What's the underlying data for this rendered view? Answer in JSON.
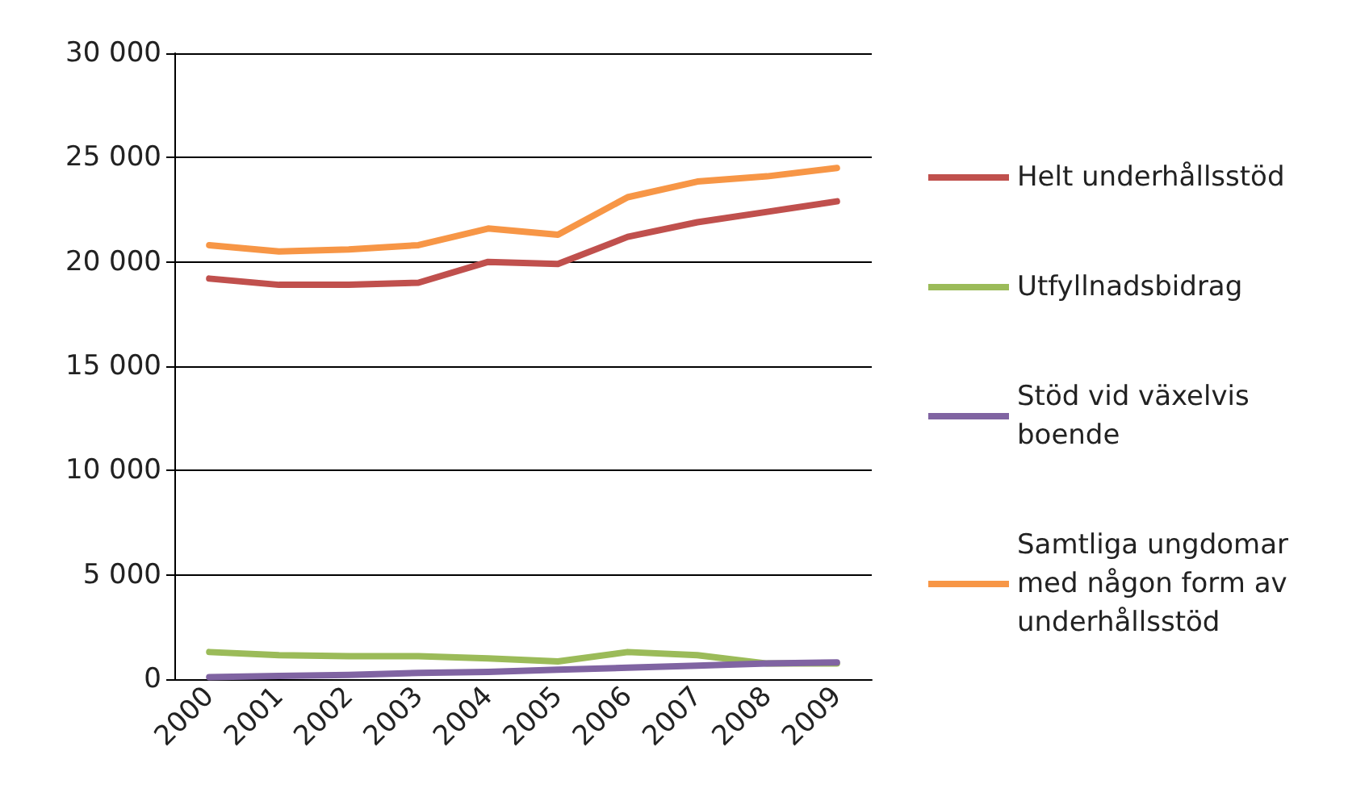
{
  "chart_data": {
    "type": "line",
    "categories": [
      "2000",
      "2001",
      "2002",
      "2003",
      "2004",
      "2005",
      "2006",
      "2007",
      "2008",
      "2009"
    ],
    "series": [
      {
        "name": "Helt underhållsstöd",
        "color": "#c0504d",
        "values": [
          19200,
          18900,
          18900,
          19000,
          20000,
          19900,
          21200,
          21900,
          22400,
          22900
        ]
      },
      {
        "name": "Utfyllnadsbidrag",
        "color": "#9bbb59",
        "values": [
          1300,
          1150,
          1100,
          1100,
          1000,
          850,
          1300,
          1150,
          750,
          750
        ]
      },
      {
        "name": "Stöd vid växelvis boende",
        "color": "#8064a2",
        "values": [
          100,
          150,
          200,
          300,
          350,
          450,
          550,
          650,
          750,
          800
        ]
      },
      {
        "name": "Samtliga ungdomar med någon form av underhållsstöd",
        "color": "#f79646",
        "values": [
          20800,
          20500,
          20600,
          20800,
          21600,
          21300,
          23100,
          23850,
          24100,
          24500
        ]
      }
    ],
    "ylim": [
      0,
      30000
    ],
    "yticks": [
      {
        "value": 0,
        "label": "0"
      },
      {
        "value": 5000,
        "label": "5 000"
      },
      {
        "value": 10000,
        "label": "10 000"
      },
      {
        "value": 15000,
        "label": "15 000"
      },
      {
        "value": 20000,
        "label": "20 000"
      },
      {
        "value": 25000,
        "label": "25 000"
      },
      {
        "value": 30000,
        "label": "30 000"
      }
    ],
    "grid": "y",
    "legend": "right",
    "marker": "none",
    "line_style": "solid"
  }
}
